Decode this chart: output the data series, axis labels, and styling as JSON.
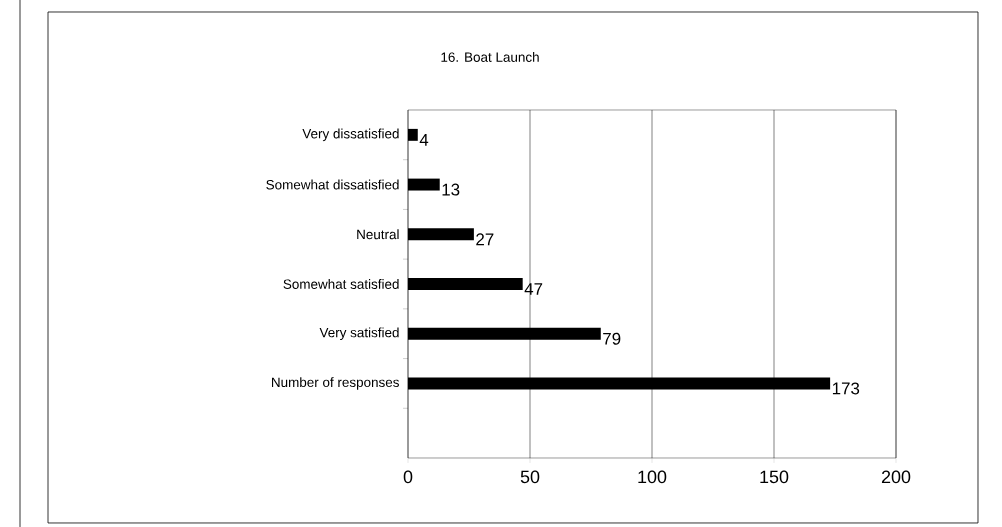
{
  "chart_data": {
    "type": "bar",
    "orientation": "horizontal",
    "title": "16. Boat Launch",
    "categories": [
      "Very dissatisfied",
      "Somewhat dissatisfied",
      "Neutral",
      "Somewhat satisfied",
      "Very satisfied",
      "Number of responses"
    ],
    "values": [
      4,
      13,
      27,
      47,
      79,
      173
    ],
    "color": "#000000",
    "data_labels": true,
    "xlim": [
      0,
      200
    ],
    "xticks": [
      0,
      50,
      100,
      150,
      200
    ],
    "grid": "x"
  }
}
